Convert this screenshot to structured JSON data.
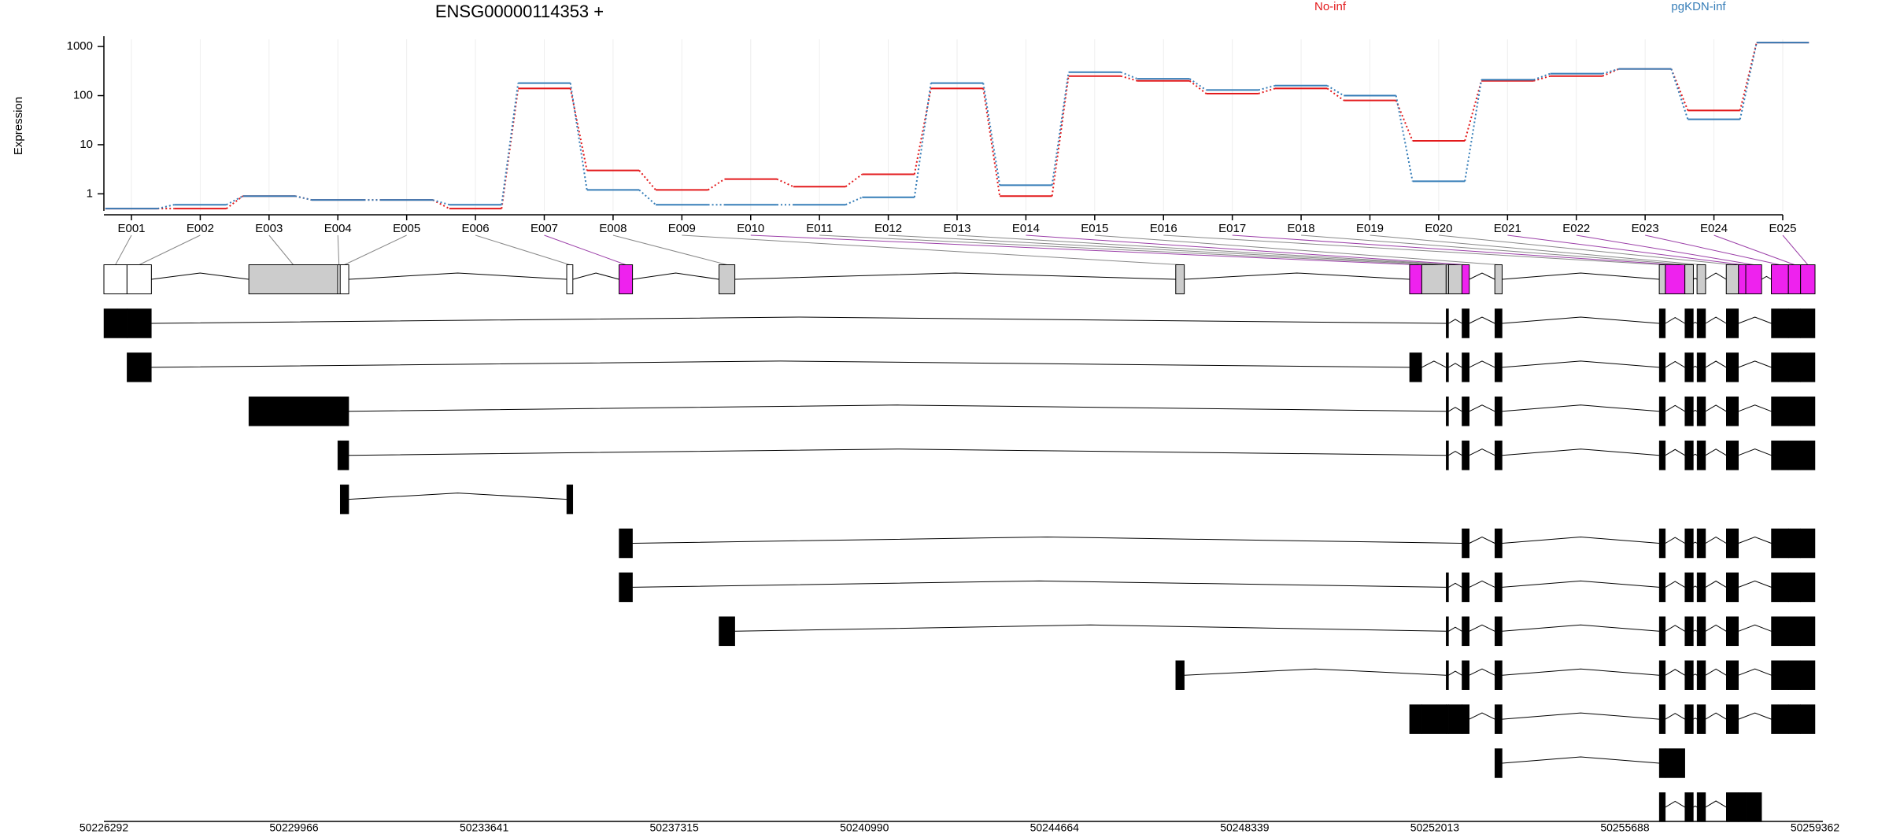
{
  "chart_data": [
    {
      "type": "step",
      "title": "ENSG00000114353 +",
      "ylabel": "Expression",
      "log": true,
      "grid": true,
      "legend": "top-right",
      "categories": [
        "E001",
        "E002",
        "E003",
        "E004",
        "E005",
        "E006",
        "E007",
        "E008",
        "E009",
        "E010",
        "E011",
        "E012",
        "E013",
        "E014",
        "E015",
        "E016",
        "E017",
        "E018",
        "E019",
        "E020",
        "E021",
        "E022",
        "E023",
        "E024",
        "E025"
      ],
      "series": [
        {
          "name": "No-inf",
          "color": "#e31a1c",
          "values": [
            0.5,
            0.5,
            0.9,
            0.75,
            0.75,
            0.5,
            140,
            3,
            1.2,
            2,
            1.4,
            2.5,
            140,
            0.9,
            250,
            200,
            110,
            140,
            80,
            12,
            200,
            250,
            350,
            50,
            1200
          ]
        },
        {
          "name": "pgKDN-inf",
          "color": "#377eb8",
          "values": [
            0.5,
            0.6,
            0.9,
            0.75,
            0.75,
            0.6,
            180,
            1.2,
            0.6,
            0.6,
            0.6,
            0.85,
            180,
            1.5,
            300,
            220,
            130,
            160,
            100,
            1.8,
            210,
            280,
            350,
            33,
            1200
          ]
        }
      ],
      "ylim": [
        0.45,
        1400
      ],
      "yticks": [
        1,
        10,
        100,
        1000
      ]
    },
    {
      "type": "gene-model",
      "exons": [
        {
          "start": 50226292,
          "end": 50226739,
          "color": "#ffffff"
        },
        {
          "start": 50226739,
          "end": 50227210,
          "color": "#ffffff"
        },
        {
          "start": 50229093,
          "end": 50230812,
          "color": "#cccccc"
        },
        {
          "start": 50230812,
          "end": 50230859,
          "color": "#ffffff"
        },
        {
          "start": 50230859,
          "end": 50231024,
          "color": "#ffffff"
        },
        {
          "start": 50235237,
          "end": 50235355,
          "color": "#ffffff"
        },
        {
          "start": 50236249,
          "end": 50236508,
          "color": "#ee22ee"
        },
        {
          "start": 50238180,
          "end": 50238486,
          "color": "#cccccc"
        },
        {
          "start": 50247007,
          "end": 50247172,
          "color": "#cccccc"
        },
        {
          "start": 50251527,
          "end": 50251762,
          "color": "#ee22ee"
        },
        {
          "start": 50251762,
          "end": 50252233,
          "color": "#cccccc"
        },
        {
          "start": 50252233,
          "end": 50252280,
          "color": "#cccccc"
        },
        {
          "start": 50252280,
          "end": 50252539,
          "color": "#cccccc"
        },
        {
          "start": 50252539,
          "end": 50252680,
          "color": "#ee22ee"
        },
        {
          "start": 50253174,
          "end": 50253315,
          "color": "#cccccc"
        },
        {
          "start": 50256352,
          "end": 50256470,
          "color": "#cccccc"
        },
        {
          "start": 50256470,
          "end": 50256847,
          "color": "#ee22ee"
        },
        {
          "start": 50256847,
          "end": 50257011,
          "color": "#cccccc"
        },
        {
          "start": 50257082,
          "end": 50257247,
          "color": "#cccccc"
        },
        {
          "start": 50257647,
          "end": 50257883,
          "color": "#cccccc"
        },
        {
          "start": 50257883,
          "end": 50258024,
          "color": "#ee22ee"
        },
        {
          "start": 50258024,
          "end": 50258330,
          "color": "#ee22ee"
        },
        {
          "start": 50258518,
          "end": 50258848,
          "color": "#ee22ee"
        },
        {
          "start": 50258848,
          "end": 50259083,
          "color": "#ee22ee"
        },
        {
          "start": 50259083,
          "end": 50259362,
          "color": "#ee22ee"
        }
      ],
      "transcripts": [
        [
          0,
          1,
          11,
          13,
          14,
          15,
          17,
          18,
          19,
          22,
          23,
          24
        ],
        [
          1,
          9,
          11,
          13,
          14,
          15,
          17,
          18,
          19,
          22,
          23,
          24
        ],
        [
          2,
          3,
          4,
          11,
          13,
          14,
          15,
          17,
          18,
          19,
          22,
          23,
          24
        ],
        [
          3,
          4,
          11,
          13,
          14,
          15,
          17,
          18,
          19,
          22,
          23,
          24
        ],
        [
          4,
          5
        ],
        [
          6,
          13,
          14,
          15,
          17,
          18,
          19,
          22,
          23,
          24
        ],
        [
          6,
          11,
          13,
          14,
          15,
          17,
          18,
          19,
          22,
          23,
          24
        ],
        [
          7,
          11,
          13,
          14,
          15,
          17,
          18,
          19,
          22,
          23,
          24
        ],
        [
          8,
          11,
          13,
          14,
          15,
          17,
          18,
          19,
          22,
          23,
          24
        ],
        [
          9,
          10,
          11,
          12,
          13,
          14,
          15,
          17,
          18,
          19,
          22,
          23,
          24
        ],
        [
          14,
          15,
          16
        ],
        [
          15,
          17,
          18,
          19,
          20,
          21
        ]
      ],
      "xlim": [
        50226292,
        50259362
      ],
      "xticks": [
        50226292,
        50229966,
        50233641,
        50237315,
        50240990,
        50244664,
        50248339,
        50252013,
        50255688,
        50259362
      ]
    }
  ]
}
